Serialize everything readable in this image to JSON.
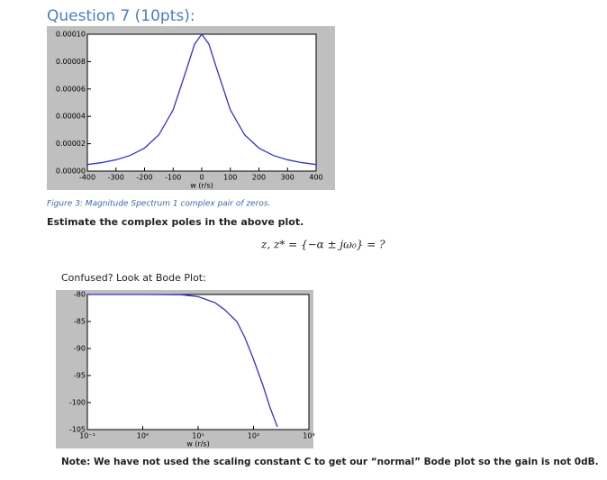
{
  "heading": "Question 7 (10pts):",
  "caption": "Figure 3: Magnitude Spectrum 1 complex pair of zeros.",
  "prompt": "Estimate the complex poles in the above plot.",
  "equation": "z, z* = {−α ± jω₀} = ?",
  "bode_prompt": "Confused? Look at Bode Plot:",
  "note": "Note: We have not used the scaling constant C to get our “normal” Bode plot so the gain is not 0dB.",
  "chart_data": [
    {
      "type": "line",
      "xlabel": "w (r/s)",
      "x": [
        -400,
        -350,
        -300,
        -250,
        -200,
        -150,
        -100,
        -50,
        -25,
        0,
        25,
        50,
        100,
        150,
        200,
        250,
        300,
        350,
        400
      ],
      "series": [
        {
          "color": "#3333cc",
          "values": [
            4.82e-06,
            6.2e-06,
            8.26e-06,
            1.147e-05,
            1.684e-05,
            2.647e-05,
            4.474e-05,
            7.64e-05,
            9.28e-05,
            0.0001,
            9.28e-05,
            7.64e-05,
            4.474e-05,
            2.647e-05,
            1.684e-05,
            1.147e-05,
            8.26e-06,
            6.2e-06,
            4.82e-06
          ]
        }
      ],
      "xlim": [
        -400,
        400
      ],
      "xticks": [
        -400,
        -300,
        -200,
        -100,
        0,
        100,
        200,
        300,
        400
      ],
      "ylim": [
        0,
        0.0001
      ],
      "yticks": [
        {
          "value": 0,
          "label": "0.00000"
        },
        {
          "value": 2e-05,
          "label": "0.00002"
        },
        {
          "value": 4e-05,
          "label": "0.00004"
        },
        {
          "value": 6e-05,
          "label": "0.00006"
        },
        {
          "value": 8e-05,
          "label": "0.00008"
        },
        {
          "value": 0.0001,
          "label": "0.00010"
        }
      ]
    },
    {
      "type": "line",
      "xlabel": "w (r/s)",
      "xscale": "log",
      "x": [
        0.1,
        1,
        5,
        10,
        20,
        30,
        50,
        70,
        100,
        150,
        200,
        270
      ],
      "series": [
        {
          "color": "#3333cc",
          "values": [
            -80,
            -80,
            -80.05,
            -80.4,
            -81.5,
            -82.8,
            -85,
            -88,
            -92,
            -97,
            -101,
            -104.5
          ]
        }
      ],
      "xlim": [
        0.1,
        1000
      ],
      "xticks": [
        {
          "value": 0.1,
          "label": "10⁻¹"
        },
        {
          "value": 1,
          "label": "10⁰"
        },
        {
          "value": 10,
          "label": "10¹"
        },
        {
          "value": 100,
          "label": "10²"
        },
        {
          "value": 1000,
          "label": "10³"
        }
      ],
      "ylim": [
        -105,
        -80
      ],
      "yticks": [
        -105,
        -100,
        -95,
        -90,
        -85,
        -80
      ]
    }
  ]
}
